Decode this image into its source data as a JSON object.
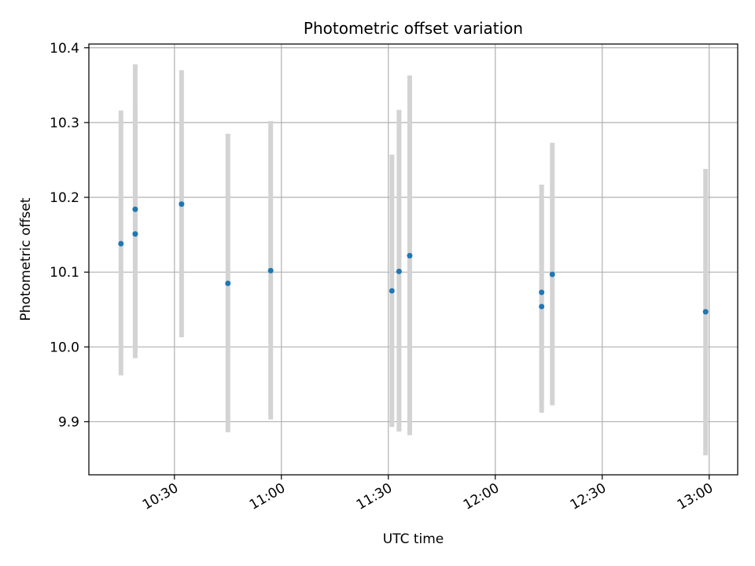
{
  "chart_data": {
    "type": "scatter",
    "title": "Photometric offset variation",
    "xlabel": "UTC time",
    "ylabel": "Photometric offset",
    "x_ticks": [
      "10:30",
      "11:00",
      "11:30",
      "12:00",
      "12:30",
      "13:00"
    ],
    "y_ticks": [
      "9.9",
      "10.0",
      "10.1",
      "10.2",
      "10.3",
      "10.4"
    ],
    "xlim": [
      "10:06",
      "13:08"
    ],
    "ylim": [
      9.829,
      10.405
    ],
    "grid": true,
    "point_color": "#1f77b4",
    "errorbar_color": "#d3d3d3",
    "points": [
      {
        "time": "10:15",
        "value": 10.138,
        "err_low": 9.962,
        "err_high": 10.316
      },
      {
        "time": "10:19",
        "value": 10.184,
        "err_low": 9.99,
        "err_high": 10.378
      },
      {
        "time": "10:19",
        "value": 10.151,
        "err_low": 9.985,
        "err_high": 10.318
      },
      {
        "time": "10:32",
        "value": 10.191,
        "err_low": 10.013,
        "err_high": 10.37
      },
      {
        "time": "10:45",
        "value": 10.085,
        "err_low": 9.886,
        "err_high": 10.285
      },
      {
        "time": "10:57",
        "value": 10.102,
        "err_low": 9.903,
        "err_high": 10.302
      },
      {
        "time": "11:31",
        "value": 10.075,
        "err_low": 9.893,
        "err_high": 10.257
      },
      {
        "time": "11:33",
        "value": 10.101,
        "err_low": 9.887,
        "err_high": 10.317
      },
      {
        "time": "11:36",
        "value": 10.122,
        "err_low": 9.882,
        "err_high": 10.363
      },
      {
        "time": "12:13",
        "value": 10.073,
        "err_low": 9.928,
        "err_high": 10.217
      },
      {
        "time": "12:13",
        "value": 10.054,
        "err_low": 9.912,
        "err_high": 10.196
      },
      {
        "time": "12:16",
        "value": 10.097,
        "err_low": 9.922,
        "err_high": 10.273
      },
      {
        "time": "12:59",
        "value": 10.047,
        "err_low": 9.855,
        "err_high": 10.238
      }
    ]
  }
}
